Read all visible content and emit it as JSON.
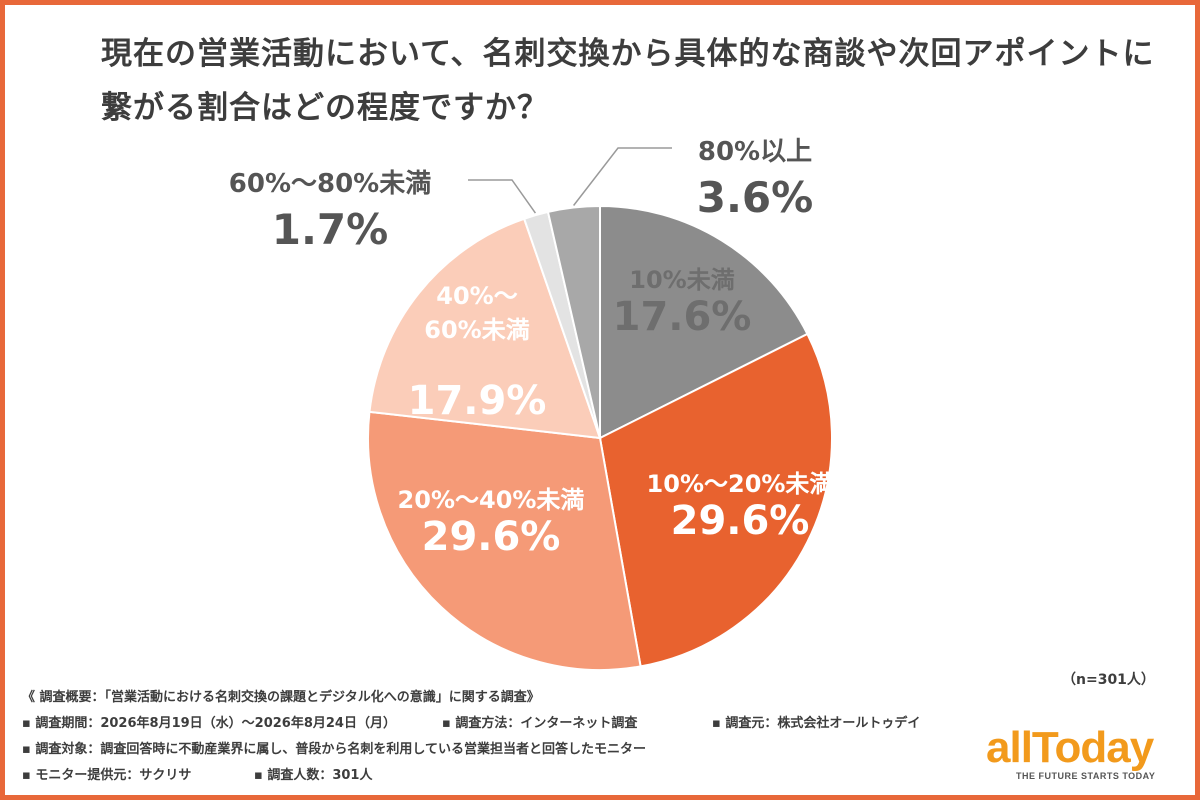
{
  "title": {
    "line1": "現在の営業活動において、名刺交換から具体的な商談や次回アポイントに",
    "line2": "繋がる割合はどの程度ですか？"
  },
  "chart_data": {
    "type": "pie",
    "start_angle_deg": 0,
    "direction": "clockwise",
    "slices": [
      {
        "label": "10%未満",
        "value": 17.6,
        "value_label": "17.6%",
        "color": "#8c8c8c",
        "text_color": "#6e6e6e"
      },
      {
        "label": "10%〜20%未満",
        "value": 29.6,
        "value_label": "29.6%",
        "color": "#e8622f",
        "text_color": "#ffffff"
      },
      {
        "label": "20%〜40%未満",
        "value": 29.6,
        "value_label": "29.6%",
        "color": "#f59a77",
        "text_color": "#ffffff"
      },
      {
        "label": "40%〜60%未満",
        "value": 17.9,
        "value_label": "17.9%",
        "color": "#fbcdb9",
        "text_color": "#ffffff"
      },
      {
        "label": "60%〜80%未満",
        "value": 1.7,
        "value_label": "1.7%",
        "color": "#e3e3e3",
        "text_color": "#555555"
      },
      {
        "label": "80%以上",
        "value": 3.6,
        "value_label": "3.6%",
        "color": "#a8a8a8",
        "text_color": "#555555"
      }
    ],
    "sample_note": "（n=301人）"
  },
  "footer": {
    "heading": "《 調査概要：「営業活動における名刺交換の課題とデジタル化への意識」に関する調査》",
    "period": "▪ 調査期間：2026年8月19日（水）〜2026年8月24日（月）",
    "method": "▪ 調査方法：インターネット調査",
    "org": "▪ 調査元：株式会社オールトゥデイ",
    "target": "▪ 調査対象：調査回答時に不動産業界に属し、普段から名刺を利用している営業担当者と回答したモニター",
    "provider": "▪ モニター提供元：サクリサ",
    "count": "▪ 調査人数：301人"
  },
  "logo": {
    "wordmark": "allToday",
    "tagline": "THE FUTURE STARTS TODAY",
    "color": "#f29a1c"
  }
}
